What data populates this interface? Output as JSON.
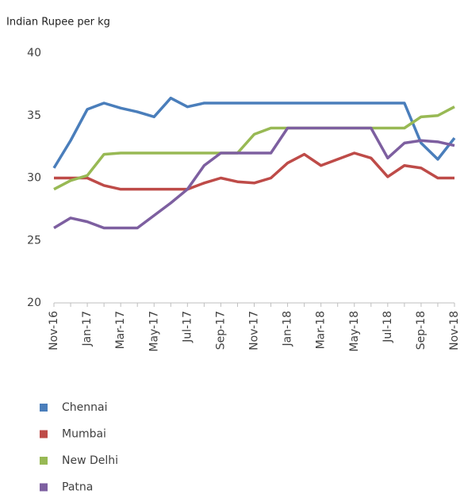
{
  "chart_data": {
    "type": "line",
    "y_axis_label": "Indian Rupee per kg",
    "categories": [
      "Nov-16",
      null,
      "Jan-17",
      null,
      "Mar-17",
      null,
      "May-17",
      null,
      "Jul-17",
      null,
      "Sep-17",
      null,
      "Nov-17",
      null,
      "Jan-18",
      null,
      "Mar-18",
      null,
      "May-18",
      null,
      "Jul-18",
      null,
      "Sep-18",
      null,
      "Nov-18"
    ],
    "series": [
      {
        "name": "Chennai",
        "color": "#4a7ebb",
        "values": [
          30.8,
          33,
          35.5,
          36,
          35.6,
          35.3,
          34.9,
          36.4,
          35.7,
          36,
          36,
          36,
          36,
          36,
          36,
          36,
          36,
          36,
          36,
          36,
          36,
          36,
          32.8,
          31.5,
          33.2
        ]
      },
      {
        "name": "Mumbai",
        "color": "#be4b48",
        "values": [
          30,
          30,
          30,
          29.4,
          29.1,
          29.1,
          29.1,
          29.1,
          29.1,
          29.6,
          30,
          29.7,
          29.6,
          30,
          31.2,
          31.9,
          31,
          31.5,
          32,
          31.6,
          30.1,
          31,
          30.8,
          30,
          30
        ]
      },
      {
        "name": "New Delhi",
        "color": "#98b954",
        "values": [
          29.1,
          29.8,
          30.2,
          31.9,
          32,
          32,
          32,
          32,
          32,
          32,
          32,
          32,
          33.5,
          34,
          34,
          34,
          34,
          34,
          34,
          34,
          34,
          34,
          34.9,
          35,
          35.7
        ]
      },
      {
        "name": "Patna",
        "color": "#7d5fa0",
        "values": [
          26,
          26.8,
          26.5,
          26,
          26,
          26,
          27,
          28,
          29.1,
          31,
          32,
          32,
          32,
          32,
          34,
          34,
          34,
          34,
          34,
          34,
          31.6,
          32.8,
          33,
          32.9,
          32.6
        ]
      }
    ],
    "ylim": [
      20,
      40
    ],
    "yticks": [
      20,
      25,
      30,
      35,
      40
    ],
    "grid": false,
    "legend": "bottom"
  }
}
